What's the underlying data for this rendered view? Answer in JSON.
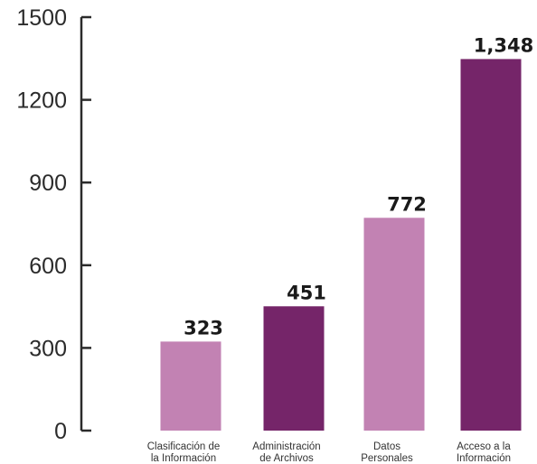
{
  "chart_data": {
    "type": "bar",
    "categories": [
      [
        "Clasificación de",
        "la Información"
      ],
      [
        "Administración",
        "de Archivos"
      ],
      [
        "Datos",
        "Personales"
      ],
      [
        "Acceso a la",
        "Información"
      ]
    ],
    "values": [
      323,
      451,
      772,
      1348
    ],
    "value_labels": [
      "323",
      "451",
      "772",
      "1,348"
    ],
    "bar_colors": [
      "#c282b3",
      "#752569",
      "#c282b3",
      "#752569"
    ],
    "ylim": [
      0,
      1500
    ],
    "yticks": [
      0,
      300,
      600,
      900,
      1200,
      1500
    ],
    "ytick_labels": [
      "0",
      "300",
      "600",
      "900",
      "1200",
      "1500"
    ],
    "grid": false,
    "axis_color": "#2b2b2b"
  }
}
